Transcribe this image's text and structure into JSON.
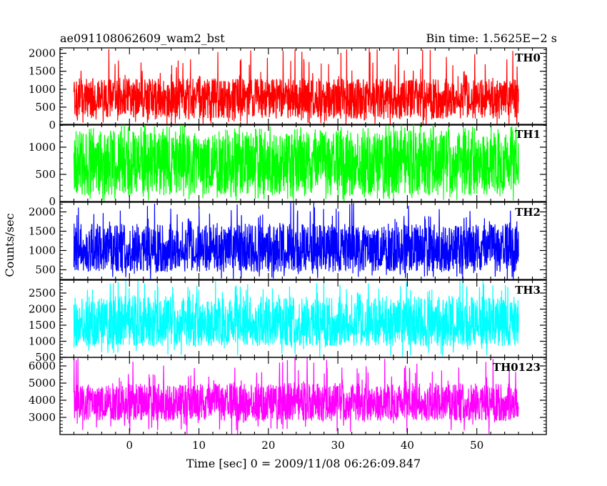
{
  "header": {
    "left_title": "ae091108062609_wam2_bst",
    "right_title": "Bin time: 1.5625E−2 s"
  },
  "chart_data": {
    "type": "line",
    "title": "ae091108062609_wam2_bst",
    "subtitle": "Bin time: 1.5625E−2 s",
    "xlabel": "Time [sec] 0 = 2009/11/08 06:26:09.847",
    "ylabel": "Counts/sec",
    "xlim": [
      -10,
      60
    ],
    "x_data_range": [
      -8,
      56
    ],
    "x_ticks": [
      0,
      10,
      20,
      30,
      40,
      50
    ],
    "x_tick_labels": [
      "0",
      "10",
      "20",
      "30",
      "40",
      "50"
    ],
    "grid": false,
    "panels": [
      {
        "name": "TH0",
        "color": "#ff0000",
        "ylim": [
          0,
          2150
        ],
        "y_ticks": [
          0,
          500,
          1000,
          1500,
          2000
        ],
        "y_tick_labels": [
          "0",
          "500",
          "1000",
          "1500",
          "2000"
        ],
        "mean": 750,
        "typical_low": 180,
        "typical_high": 1300,
        "min": 0,
        "max": 2150
      },
      {
        "name": "TH1",
        "color": "#00ff00",
        "ylim": [
          0,
          1420
        ],
        "y_ticks": [
          0,
          500,
          1000
        ],
        "y_tick_labels": [
          "0",
          "500",
          "1000"
        ],
        "mean": 700,
        "typical_low": 120,
        "typical_high": 1300,
        "min": 0,
        "max": 1420
      },
      {
        "name": "TH2",
        "color": "#0000ff",
        "ylim": [
          250,
          2250
        ],
        "y_ticks": [
          500,
          1000,
          1500,
          2000
        ],
        "y_tick_labels": [
          "500",
          "1000",
          "1500",
          "2000"
        ],
        "mean": 1000,
        "typical_low": 450,
        "typical_high": 1700,
        "min": 250,
        "max": 2250
      },
      {
        "name": "TH3",
        "color": "#00ffff",
        "ylim": [
          500,
          2900
        ],
        "y_ticks": [
          500,
          1000,
          1500,
          2000,
          2500
        ],
        "y_tick_labels": [
          "500",
          "1000",
          "1500",
          "2000",
          "2500"
        ],
        "mean": 1500,
        "typical_low": 850,
        "typical_high": 2400,
        "min": 500,
        "max": 2900
      },
      {
        "name": "TH0123",
        "color": "#ff00ff",
        "ylim": [
          2000,
          6500
        ],
        "y_ticks": [
          3000,
          4000,
          5000,
          6000
        ],
        "y_tick_labels": [
          "3000",
          "4000",
          "5000",
          "6000"
        ],
        "mean": 3800,
        "typical_low": 2800,
        "typical_high": 5000,
        "min": 2000,
        "max": 6500
      }
    ]
  }
}
